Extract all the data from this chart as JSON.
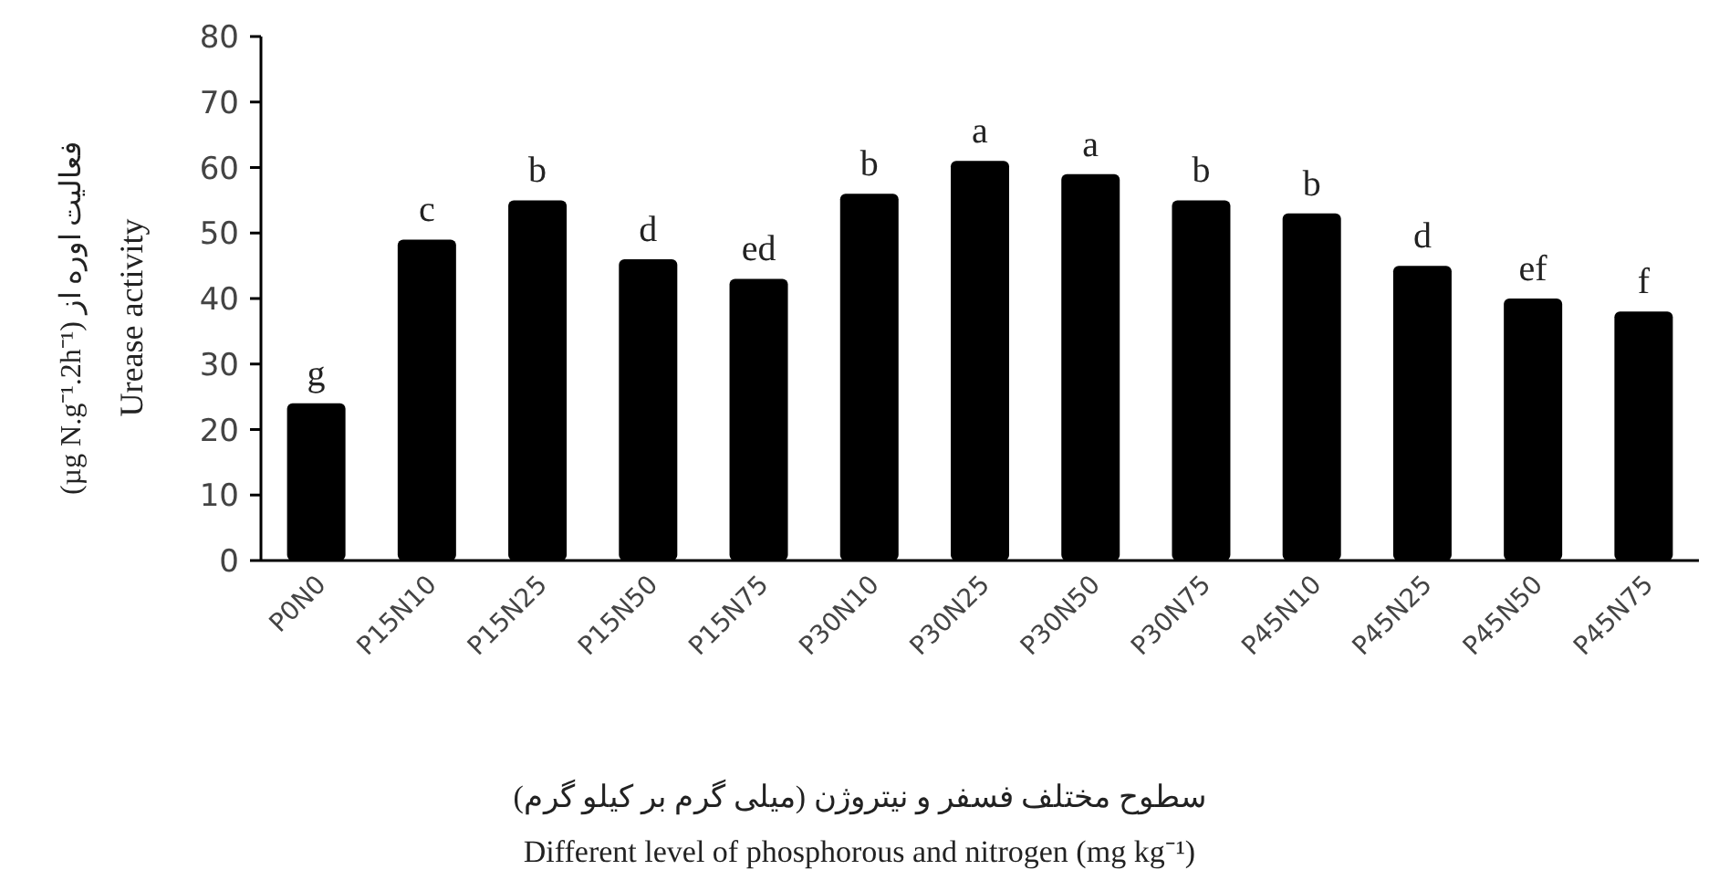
{
  "chart_data": {
    "type": "bar",
    "xlabel": "سطوح مختلف فسفر و نیتروژن (میلی گرم بر کیلو گرم)\nDifferent level of phosphorous and nitrogen (mg kg⁻¹)",
    "ylabel": "فعالیت اوره از (µg N.g⁻¹.2h⁻¹)\nUrease activity",
    "categories": [
      "P0N0",
      "P15N10",
      "P15N25",
      "P15N50",
      "P15N75",
      "P30N10",
      "P30N25",
      "P30N50",
      "P30N75",
      "P45N10",
      "P45N25",
      "P45N50",
      "P45N75"
    ],
    "values": [
      24,
      49,
      55,
      46,
      43,
      56,
      61,
      59,
      55,
      53,
      45,
      40,
      38
    ],
    "color": "#000000",
    "ylim": [
      0,
      80
    ],
    "yticks": [
      0,
      10,
      20,
      30,
      40,
      50,
      60,
      70,
      80
    ],
    "grid": false,
    "annotations": [
      {
        "text": "g",
        "x": "P0N0",
        "y": 24
      },
      {
        "text": "c",
        "x": "P15N10",
        "y": 49
      },
      {
        "text": "b",
        "x": "P15N25",
        "y": 55
      },
      {
        "text": "d",
        "x": "P15N50",
        "y": 46
      },
      {
        "text": "ed",
        "x": "P15N75",
        "y": 43
      },
      {
        "text": "b",
        "x": "P30N10",
        "y": 56
      },
      {
        "text": "a",
        "x": "P30N25",
        "y": 61
      },
      {
        "text": "a",
        "x": "P30N50",
        "y": 59
      },
      {
        "text": "b",
        "x": "P30N75",
        "y": 55
      },
      {
        "text": "b",
        "x": "P45N10",
        "y": 53
      },
      {
        "text": "d",
        "x": "P45N25",
        "y": 45
      },
      {
        "text": "ef",
        "x": "P45N50",
        "y": 40
      },
      {
        "text": "f",
        "x": "P45N75",
        "y": 38
      }
    ]
  }
}
